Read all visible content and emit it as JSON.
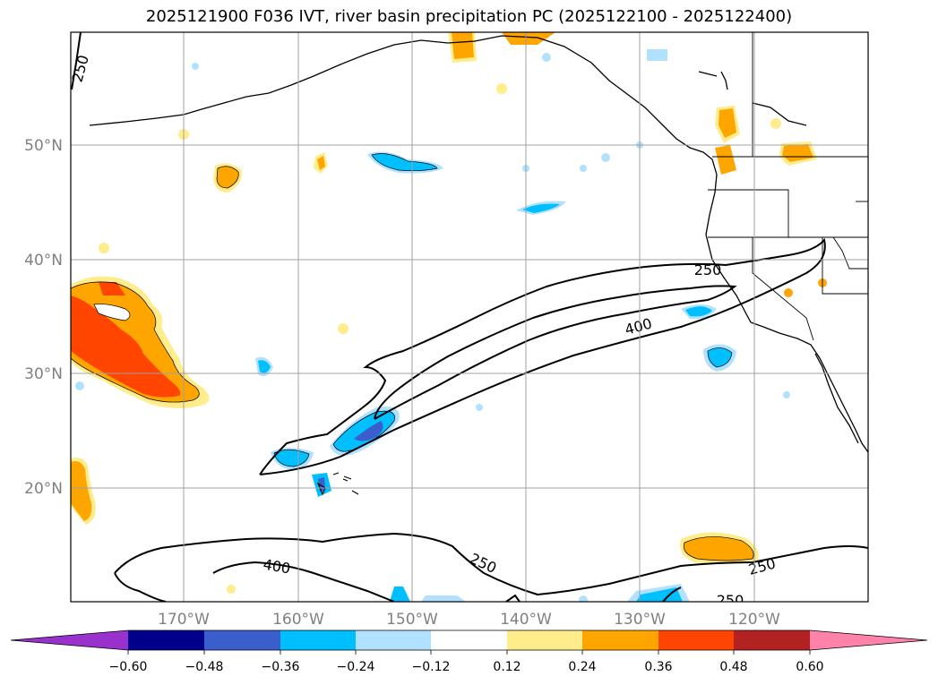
{
  "title": "2025121900 F036 IVT, river basin precipitation PC (2025122100 - 2025122400)",
  "lat_labels": [
    "50°N",
    "40°N",
    "30°N",
    "20°N"
  ],
  "lon_labels": [
    "170°W",
    "160°W",
    "150°W",
    "140°W",
    "130°W",
    "120°W"
  ],
  "colorbar": {
    "ticks": [
      "−0.60",
      "−0.48",
      "−0.36",
      "−0.24",
      "−0.12",
      "0.12",
      "0.24",
      "0.36",
      "0.48",
      "0.60"
    ],
    "colors": [
      "#9932cc",
      "#00008b",
      "#3a5fcd",
      "#00bfff",
      "#b0e2ff",
      "#ffffff",
      "#ffec8b",
      "#ffa500",
      "#ff4500",
      "#b22222",
      "#ff82ab"
    ]
  },
  "contour_labels": [
    "250",
    "250",
    "400",
    "400",
    "250",
    "250",
    "250"
  ]
}
